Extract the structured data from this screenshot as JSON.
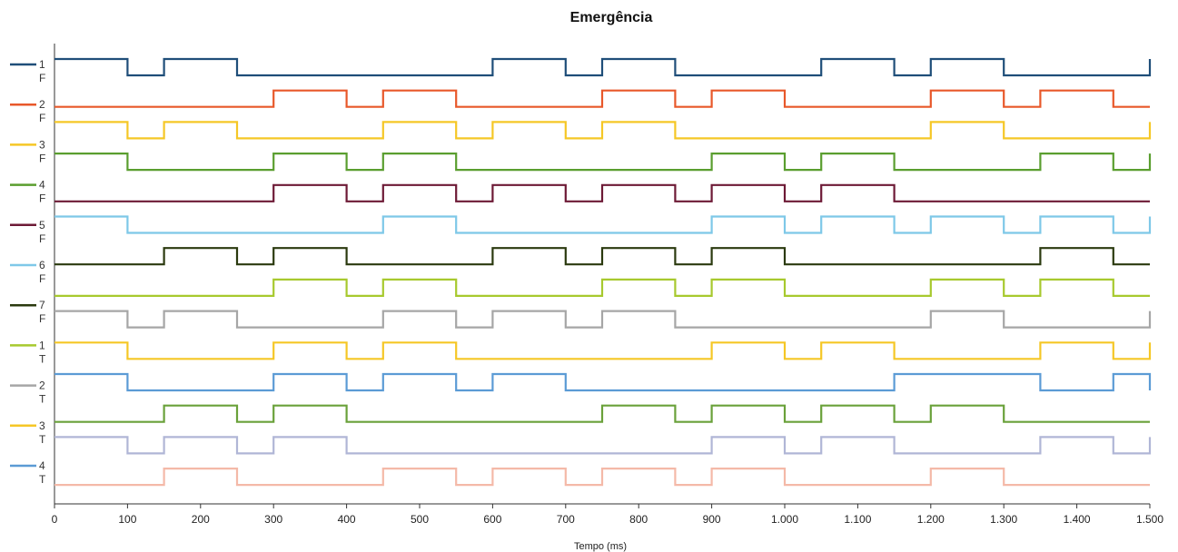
{
  "chart_data": {
    "type": "line",
    "title": "Emergência",
    "xlabel": "Tempo (ms)",
    "ylabel": "",
    "xlim": [
      0,
      1500
    ],
    "x_ticks": [
      0,
      100,
      200,
      300,
      400,
      500,
      600,
      700,
      800,
      900,
      1000,
      1100,
      1200,
      1300,
      1400,
      1500
    ],
    "x_tick_labels": [
      "0",
      "100",
      "200",
      "300",
      "400",
      "500",
      "600",
      "700",
      "800",
      "900",
      "1.000",
      "1.100",
      "1.200",
      "1.300",
      "1.400",
      "1.500"
    ],
    "grid": false,
    "legend_position": "left",
    "series": [
      {
        "color": "#1f4e79",
        "legend_top": "1",
        "legend_bottom": "F",
        "initial": 1,
        "toggles": [
          100,
          150,
          250,
          600,
          700,
          750,
          850,
          1050,
          1150,
          1200,
          1300,
          1500
        ]
      },
      {
        "color": "#e8582a",
        "legend_top": "2",
        "legend_bottom": "F",
        "initial": 0,
        "toggles": [
          300,
          400,
          450,
          550,
          750,
          850,
          900,
          1000,
          1200,
          1300,
          1350,
          1450
        ]
      },
      {
        "color": "#f5c726",
        "legend_top": "3",
        "legend_bottom": "F",
        "initial": 1,
        "toggles": [
          100,
          150,
          250,
          450,
          550,
          600,
          700,
          750,
          850,
          1200,
          1300,
          1500
        ]
      },
      {
        "color": "#5a9e2f",
        "legend_top": "4",
        "legend_bottom": "F",
        "initial": 1,
        "toggles": [
          100,
          300,
          400,
          450,
          550,
          900,
          1000,
          1050,
          1150,
          1350,
          1450,
          1500
        ]
      },
      {
        "color": "#6d1a36",
        "legend_top": "5",
        "legend_bottom": "F",
        "initial": 0,
        "toggles": [
          300,
          400,
          450,
          550,
          600,
          700,
          750,
          850,
          900,
          1000,
          1050,
          1150
        ]
      },
      {
        "color": "#7ec8e8",
        "legend_top": "6",
        "legend_bottom": "F",
        "initial": 1,
        "toggles": [
          100,
          450,
          550,
          900,
          1000,
          1050,
          1150,
          1200,
          1300,
          1350,
          1450,
          1500
        ]
      },
      {
        "color": "#2b3a0f",
        "legend_top": "7",
        "legend_bottom": "F",
        "initial": 0,
        "toggles": [
          150,
          250,
          300,
          400,
          600,
          700,
          750,
          850,
          900,
          1000,
          1350,
          1450
        ]
      },
      {
        "color": "#a7c92e",
        "legend_top": "1",
        "legend_bottom": "T",
        "initial": 0,
        "toggles": [
          300,
          400,
          450,
          550,
          750,
          850,
          900,
          1000,
          1200,
          1300,
          1350,
          1450
        ]
      },
      {
        "color": "#a6a6a6",
        "legend_top": "2",
        "legend_bottom": "T",
        "initial": 1,
        "toggles": [
          100,
          150,
          250,
          450,
          550,
          600,
          700,
          750,
          850,
          1200,
          1300,
          1500
        ]
      },
      {
        "color": "#f5c726",
        "legend_top": "3",
        "legend_bottom": "T",
        "initial": 1,
        "toggles": [
          100,
          300,
          400,
          450,
          550,
          900,
          1000,
          1050,
          1150,
          1350,
          1450,
          1500
        ]
      },
      {
        "color": "#5b9bd5",
        "legend_top": "4",
        "legend_bottom": "T",
        "initial": 1,
        "toggles": [
          100,
          300,
          400,
          450,
          550,
          600,
          700,
          1150,
          1350,
          1450,
          1500
        ]
      },
      {
        "color": "#6aa13a",
        "legend_top": "",
        "legend_bottom": "",
        "initial": 0,
        "toggles": [
          150,
          250,
          300,
          400,
          750,
          850,
          900,
          1000,
          1050,
          1150,
          1200,
          1300
        ]
      },
      {
        "color": "#b0b6d6",
        "legend_top": "",
        "legend_bottom": "",
        "initial": 1,
        "toggles": [
          100,
          150,
          250,
          300,
          400,
          900,
          1000,
          1050,
          1150,
          1350,
          1450,
          1500
        ]
      },
      {
        "color": "#f4b9a8",
        "legend_top": "",
        "legend_bottom": "",
        "initial": 0,
        "toggles": [
          150,
          250,
          450,
          550,
          600,
          700,
          750,
          850,
          900,
          1000,
          1200,
          1300
        ]
      }
    ]
  }
}
